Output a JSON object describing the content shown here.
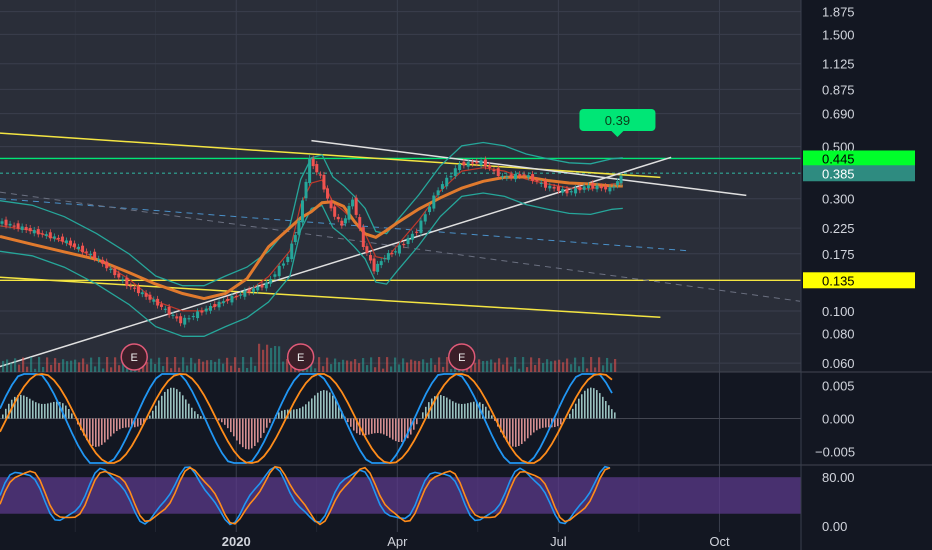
{
  "colors": {
    "background": "#131722",
    "pane_bg": "#2a2e39",
    "grid": "#3a3f4d",
    "axis_text": "#d1d4dc",
    "up": "#26a69a",
    "down": "#ef5350",
    "trend_yellow": "#f4e542",
    "trend_white": "#e0e0e0",
    "green_level": "#00e676",
    "teal_level": "#2e8b80",
    "bb": "#26a69a",
    "ma_orange": "#e07a2e",
    "ma_red": "#c0392b",
    "dashed_blue": "#4a90c8",
    "macd_blue": "#2196f3",
    "macd_orange": "#ff8c1a",
    "stoch_band": "#5b3a8a",
    "earnings": "#e05a78"
  },
  "chart_data": {
    "type": "candlestick",
    "scale": "log",
    "price_axis": {
      "ticks": [
        "1.875",
        "1.500",
        "1.125",
        "0.875",
        "0.690",
        "0.500",
        "0.300",
        "0.225",
        "0.175",
        "0.100",
        "0.080",
        "0.060"
      ],
      "tick_values": [
        1.875,
        1.5,
        1.125,
        0.875,
        0.69,
        0.5,
        0.3,
        0.225,
        0.175,
        0.1,
        0.08,
        0.06
      ],
      "ylim": [
        0.055,
        2.1
      ]
    },
    "time_axis": {
      "labels": [
        "2020",
        "Apr",
        "Jul",
        "Oct"
      ],
      "label_months": [
        0,
        3,
        6,
        9
      ],
      "xlim_months": [
        -4.4,
        10.5
      ]
    },
    "price_tags": [
      {
        "label": "0.445",
        "value": 0.445,
        "style": "green"
      },
      {
        "label": "0.385",
        "value": 0.385,
        "style": "teal"
      },
      {
        "label": "0.135",
        "value": 0.135,
        "style": "yellow"
      }
    ],
    "callout": {
      "label": "0.39",
      "value": 0.39,
      "month": 7.1
    },
    "earnings_markers": [
      {
        "label": "E",
        "month": -1.9
      },
      {
        "label": "E",
        "month": 1.2
      },
      {
        "label": "E",
        "month": 4.2
      }
    ],
    "price_series": {
      "months": [
        -4.4,
        -3.8,
        -3.2,
        -2.6,
        -2.0,
        -1.5,
        -1.0,
        -0.6,
        -0.2,
        0.2,
        0.6,
        1.0,
        1.2,
        1.4,
        1.6,
        1.8,
        2.0,
        2.2,
        2.4,
        2.6,
        2.8,
        3.0,
        3.4,
        3.8,
        4.2,
        4.6,
        5.0,
        5.4,
        5.8,
        6.2,
        6.6,
        7.0,
        7.2
      ],
      "close": [
        0.24,
        0.22,
        0.2,
        0.17,
        0.13,
        0.11,
        0.09,
        0.1,
        0.11,
        0.12,
        0.13,
        0.17,
        0.24,
        0.44,
        0.37,
        0.27,
        0.23,
        0.3,
        0.19,
        0.15,
        0.17,
        0.18,
        0.22,
        0.33,
        0.42,
        0.43,
        0.37,
        0.38,
        0.34,
        0.32,
        0.34,
        0.33,
        0.37
      ]
    },
    "trendlines": [
      {
        "color": "yellow",
        "from": [
          -4.4,
          0.57
        ],
        "to": [
          7.9,
          0.37
        ]
      },
      {
        "color": "yellow",
        "from": [
          -4.4,
          0.139
        ],
        "to": [
          7.9,
          0.094
        ]
      },
      {
        "color": "white",
        "from": [
          -4.4,
          0.058
        ],
        "to": [
          8.1,
          0.45
        ]
      },
      {
        "color": "white",
        "from": [
          1.4,
          0.53
        ],
        "to": [
          9.5,
          0.31
        ]
      }
    ],
    "horizontal_levels": [
      {
        "value": 0.445,
        "color": "green"
      },
      {
        "value": 0.385,
        "color": "teal"
      },
      {
        "value": 0.135,
        "color": "yellow"
      }
    ],
    "macd": {
      "ticks": [
        "0.005",
        "0.000",
        "−0.005"
      ],
      "tick_values": [
        0.005,
        0.0,
        -0.005
      ],
      "ylim": [
        -0.007,
        0.007
      ]
    },
    "stochastic": {
      "ticks": [
        "80.00",
        "0.00"
      ],
      "tick_values": [
        80,
        0
      ],
      "ylim": [
        -10,
        100
      ],
      "band": [
        20,
        80
      ]
    }
  }
}
